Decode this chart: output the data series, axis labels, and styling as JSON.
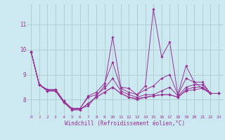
{
  "title": "",
  "xlabel": "Windchill (Refroidissement éolien,°C)",
  "background_color": "#cce8f0",
  "grid_color": "#aacccc",
  "line_color": "#993399",
  "x": [
    0,
    1,
    2,
    3,
    4,
    5,
    6,
    7,
    8,
    9,
    10,
    11,
    12,
    13,
    14,
    15,
    16,
    17,
    18,
    19,
    20,
    21,
    22,
    23
  ],
  "series": [
    [
      9.9,
      8.6,
      8.4,
      8.4,
      7.95,
      7.65,
      7.65,
      7.75,
      8.15,
      8.55,
      10.5,
      8.5,
      8.45,
      8.2,
      8.55,
      11.6,
      9.7,
      10.3,
      8.2,
      9.35,
      8.7,
      8.45,
      8.25,
      8.25
    ],
    [
      9.9,
      8.6,
      8.4,
      8.4,
      7.95,
      7.65,
      7.65,
      8.15,
      8.3,
      8.65,
      9.5,
      8.45,
      8.3,
      8.2,
      8.4,
      8.55,
      8.85,
      9.0,
      8.2,
      8.85,
      8.7,
      8.7,
      8.25,
      8.25
    ],
    [
      9.9,
      8.6,
      8.35,
      8.4,
      7.95,
      7.65,
      7.65,
      8.1,
      8.2,
      8.45,
      8.85,
      8.35,
      8.2,
      8.1,
      8.2,
      8.2,
      8.35,
      8.5,
      8.15,
      8.5,
      8.6,
      8.6,
      8.25,
      8.25
    ],
    [
      9.9,
      8.6,
      8.35,
      8.35,
      7.9,
      7.6,
      7.6,
      7.85,
      8.1,
      8.3,
      8.5,
      8.25,
      8.1,
      8.05,
      8.1,
      8.15,
      8.2,
      8.2,
      8.1,
      8.4,
      8.5,
      8.5,
      8.25,
      8.25
    ],
    [
      9.9,
      8.6,
      8.35,
      8.35,
      7.9,
      7.6,
      7.6,
      7.85,
      8.1,
      8.3,
      8.5,
      8.25,
      8.1,
      8.0,
      8.1,
      8.15,
      8.2,
      8.2,
      8.1,
      8.35,
      8.4,
      8.45,
      8.25,
      8.25
    ]
  ],
  "ylim": [
    7.4,
    11.8
  ],
  "yticks": [
    8,
    9,
    10,
    11
  ],
  "xlim": [
    -0.5,
    23.5
  ]
}
